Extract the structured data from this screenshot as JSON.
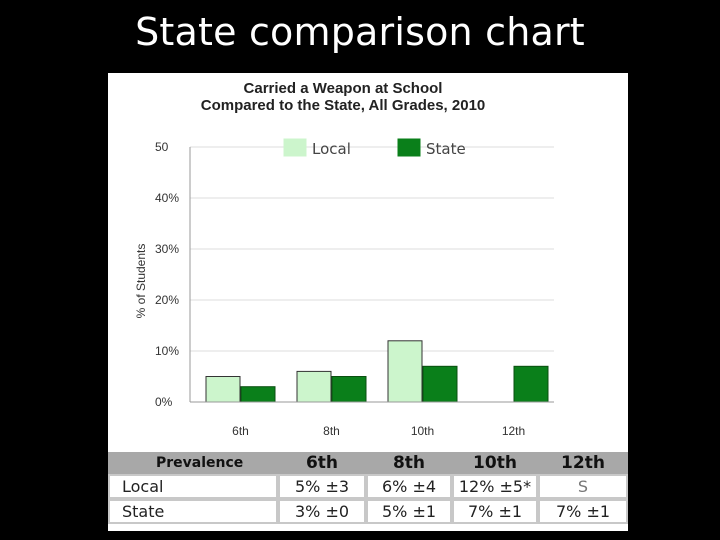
{
  "slide": {
    "title": "State comparison chart"
  },
  "chart_data": {
    "type": "bar",
    "title": "Carried a Weapon at School",
    "subtitle": "Compared to the State, All Grades, 2010",
    "ylabel": "% of Students",
    "xlabel": "",
    "categories": [
      "6th",
      "8th",
      "10th",
      "12th"
    ],
    "series": [
      {
        "name": "Local",
        "values": [
          5,
          6,
          12,
          null
        ],
        "color": "#ccf5cc"
      },
      {
        "name": "State",
        "values": [
          3,
          5,
          7,
          7
        ],
        "color": "#0a7f1a"
      }
    ],
    "ylim": [
      0,
      50
    ],
    "yticks": [
      {
        "value": 0,
        "label": "0%"
      },
      {
        "value": 10,
        "label": "10%"
      },
      {
        "value": 20,
        "label": "20%"
      },
      {
        "value": 30,
        "label": "30%"
      },
      {
        "value": 40,
        "label": "40%"
      },
      {
        "value": 50,
        "label": "50"
      }
    ],
    "grid": true,
    "legend": "top-center"
  },
  "table": {
    "header_label": "Prevalence",
    "grades": [
      "6th",
      "8th",
      "10th",
      "12th"
    ],
    "rows": [
      {
        "label": "Local",
        "cells": [
          "5% ±3",
          "6% ±4",
          "12% ±5*",
          "S"
        ]
      },
      {
        "label": "State",
        "cells": [
          "3% ±0",
          "5% ±1",
          "7% ±1",
          "7% ±1"
        ]
      }
    ]
  }
}
